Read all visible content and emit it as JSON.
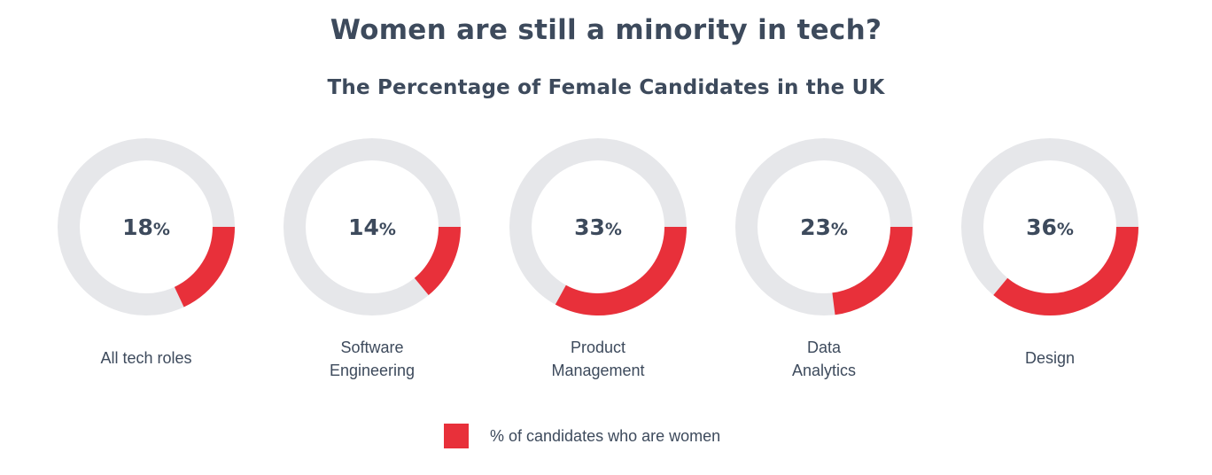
{
  "chart_data": {
    "type": "pie",
    "subtype": "donut-multiples",
    "title": "Women are still a minority in tech?",
    "subtitle": "The Percentage of Female Candidates in the UK",
    "categories": [
      "All tech roles",
      "Software\nEngineering",
      "Product\nManagement",
      "Data\nAnalytics",
      "Design"
    ],
    "series": [
      {
        "name": "% of candidates who are women",
        "values": [
          18,
          14,
          33,
          23,
          36
        ]
      }
    ],
    "value_labels": [
      {
        "num": "18",
        "unit": "%"
      },
      {
        "num": "14",
        "unit": "%"
      },
      {
        "num": "33",
        "unit": "%"
      },
      {
        "num": "23",
        "unit": "%"
      },
      {
        "num": "36",
        "unit": "%"
      }
    ],
    "value_max": 100,
    "start_angle": "3 o'clock",
    "direction": "clockwise",
    "legend": {
      "label": "% of candidates who are women",
      "position": "bottom"
    },
    "colors": {
      "highlight": "#e8303a",
      "track": "#e6e7ea",
      "text": "#3d4a5c"
    }
  }
}
